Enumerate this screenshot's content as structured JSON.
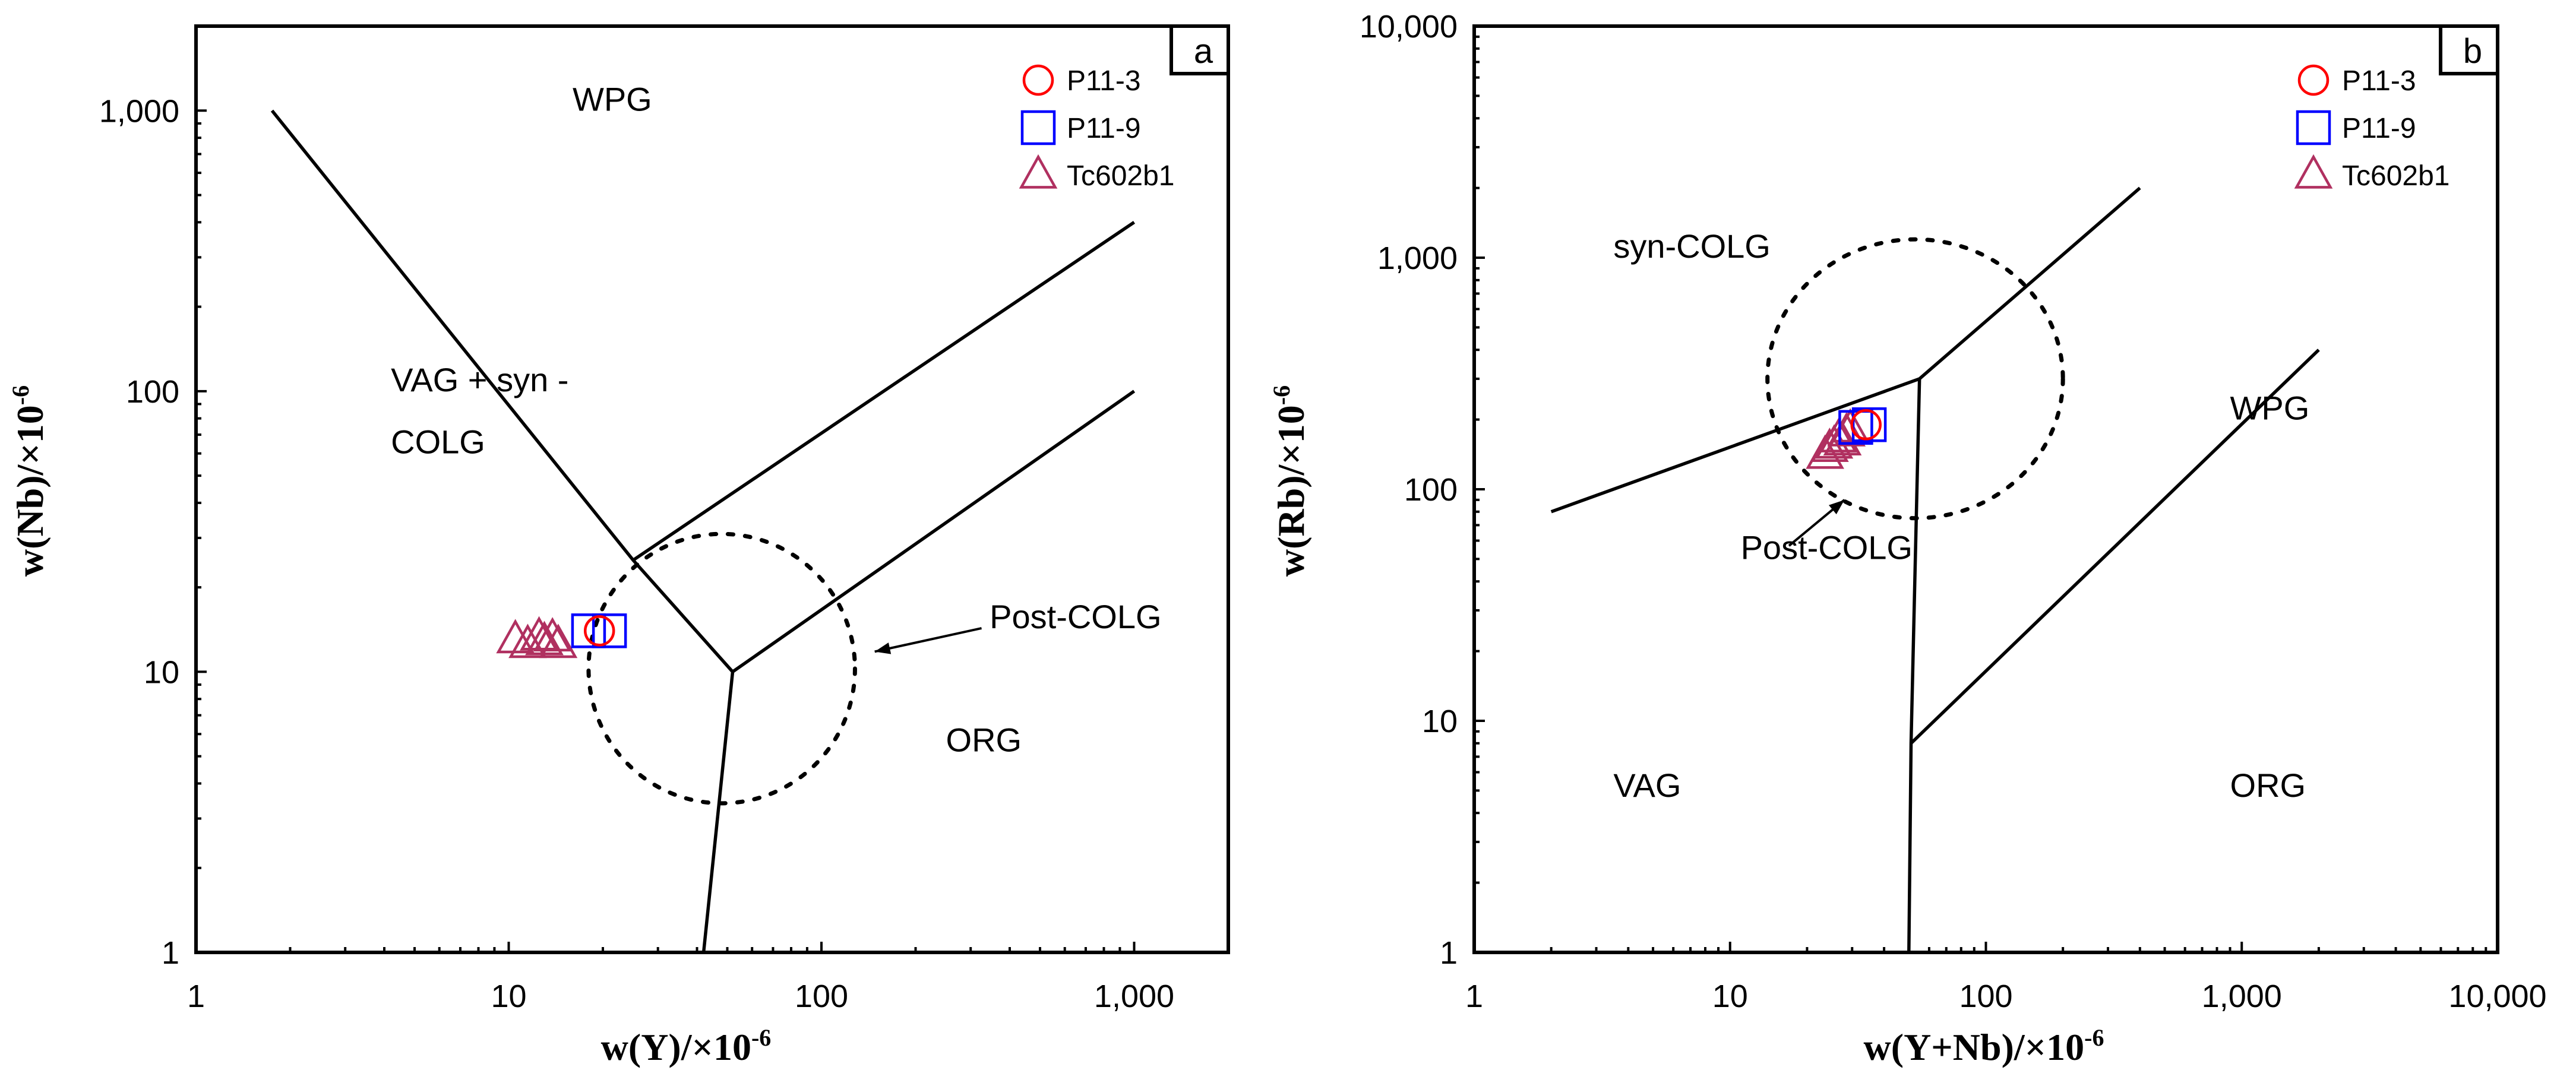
{
  "chart_data": [
    {
      "panel": "a",
      "type": "scatter",
      "x_scale": "log",
      "y_scale": "log",
      "xlim": [
        1,
        2000
      ],
      "ylim": [
        1,
        2000
      ],
      "xlabel": "w(Y)/×10",
      "xlabel_sup": "-6",
      "ylabel": "w(Nb)/×10",
      "ylabel_sup": "-6",
      "x_ticks": [
        1,
        10,
        100,
        1000
      ],
      "x_tick_labels": [
        "1",
        "10",
        "100",
        "1,000"
      ],
      "y_ticks": [
        1,
        10,
        100,
        1000
      ],
      "y_tick_labels": [
        "1",
        "10",
        "100",
        "1,000"
      ],
      "fields": [
        {
          "name": "wpg",
          "label": "WPG",
          "x": 16,
          "y": 1000
        },
        {
          "name": "vag-syn-colg-1",
          "label": "VAG + syn  -",
          "x": 4.2,
          "y": 100
        },
        {
          "name": "vag-syn-colg-2",
          "label": "COLG",
          "x": 4.2,
          "y": 60
        },
        {
          "name": "org",
          "label": "ORG",
          "x": 250,
          "y": 5.2
        },
        {
          "name": "post-colg",
          "label": "Post-COLG",
          "x": 345,
          "y": 14.3
        }
      ],
      "boundaries": [
        [
          [
            1.75,
            1000
          ],
          [
            25,
            25
          ],
          [
            52,
            10
          ],
          [
            42,
            1
          ]
        ],
        [
          [
            25,
            25
          ],
          [
            1000,
            400
          ]
        ],
        [
          [
            52,
            10
          ],
          [
            1000,
            100
          ]
        ]
      ],
      "post_colg_ellipse": {
        "center": [
          52,
          10
        ],
        "x_range": [
          18,
          128
        ],
        "y_range": [
          3.4,
          31
        ]
      },
      "annotation_arrow": {
        "from": [
          325,
          14.3
        ],
        "to": [
          148,
          11.8
        ]
      },
      "series": [
        {
          "name": "P11-3",
          "marker": "circle",
          "color": "#ff0000",
          "points": [
            [
              19.5,
              14
            ]
          ]
        },
        {
          "name": "P11-9",
          "marker": "square",
          "color": "#0000ff",
          "points": [
            [
              18,
              14
            ],
            [
              21,
              14
            ]
          ]
        },
        {
          "name": "Tc602b1",
          "marker": "triangle",
          "color": "#b03060",
          "points": [
            [
              10.5,
              13
            ],
            [
              11.5,
              12.5
            ],
            [
              12.5,
              13.3
            ],
            [
              13,
              12.8
            ],
            [
              13.8,
              13.2
            ],
            [
              14.4,
              12.5
            ]
          ]
        }
      ],
      "legend": [
        {
          "label": "P11-3",
          "marker": "circle",
          "color": "#ff0000"
        },
        {
          "label": "P11-9",
          "marker": "square",
          "color": "#0000ff"
        },
        {
          "label": "Tc602b1",
          "marker": "triangle",
          "color": "#b03060"
        }
      ]
    },
    {
      "panel": "b",
      "type": "scatter",
      "x_scale": "log",
      "y_scale": "log",
      "xlim": [
        1,
        10000
      ],
      "ylim": [
        1,
        10000
      ],
      "xlabel": "w(Y+Nb)/×10",
      "xlabel_sup": "-6",
      "ylabel": "w(Rb)/×10",
      "ylabel_sup": "-6",
      "x_ticks": [
        1,
        10,
        100,
        1000,
        10000
      ],
      "x_tick_labels": [
        "1",
        "10",
        "100",
        "1,000",
        "10,000"
      ],
      "y_ticks": [
        1,
        10,
        100,
        1000,
        10000
      ],
      "y_tick_labels": [
        "1",
        "10",
        "100",
        "1,000",
        "10,000"
      ],
      "fields": [
        {
          "name": "syn-colg",
          "label": "syn-COLG",
          "x": 3.5,
          "y": 1000
        },
        {
          "name": "wpg",
          "label": "WPG",
          "x": 900,
          "y": 200
        },
        {
          "name": "vag",
          "label": "VAG",
          "x": 3.5,
          "y": 4.7
        },
        {
          "name": "org",
          "label": "ORG",
          "x": 900,
          "y": 4.7
        },
        {
          "name": "post-colg",
          "label": "Post-COLG",
          "x": 11,
          "y": 50
        }
      ],
      "boundaries": [
        [
          [
            2,
            80
          ],
          [
            55,
            300
          ],
          [
            400,
            2000
          ]
        ],
        [
          [
            55,
            300
          ],
          [
            51,
            8
          ],
          [
            50,
            1
          ]
        ],
        [
          [
            51,
            8
          ],
          [
            2000,
            400
          ]
        ]
      ],
      "post_colg_ellipse": {
        "center": [
          55,
          300
        ],
        "x_range": [
          14,
          200
        ],
        "y_range": [
          75,
          1200
        ]
      },
      "annotation_arrow": {
        "from": [
          17,
          57
        ],
        "to": [
          28,
          90
        ]
      },
      "series": [
        {
          "name": "P11-3",
          "marker": "circle",
          "color": "#ff0000",
          "points": [
            [
              34,
              190
            ]
          ]
        },
        {
          "name": "P11-9",
          "marker": "square",
          "color": "#0000ff",
          "points": [
            [
              31,
              185
            ],
            [
              35,
              190
            ]
          ]
        },
        {
          "name": "Tc602b1",
          "marker": "triangle",
          "color": "#b03060",
          "points": [
            [
              23.5,
              140
            ],
            [
              24.5,
              150
            ],
            [
              25.5,
              155
            ],
            [
              26.5,
              165
            ],
            [
              27.5,
              160
            ],
            [
              28.5,
              175
            ],
            [
              29.5,
              182
            ]
          ]
        }
      ],
      "legend": [
        {
          "label": "P11-3",
          "marker": "circle",
          "color": "#ff0000"
        },
        {
          "label": "P11-9",
          "marker": "square",
          "color": "#0000ff"
        },
        {
          "label": "Tc602b1",
          "marker": "triangle",
          "color": "#b03060"
        }
      ]
    }
  ]
}
